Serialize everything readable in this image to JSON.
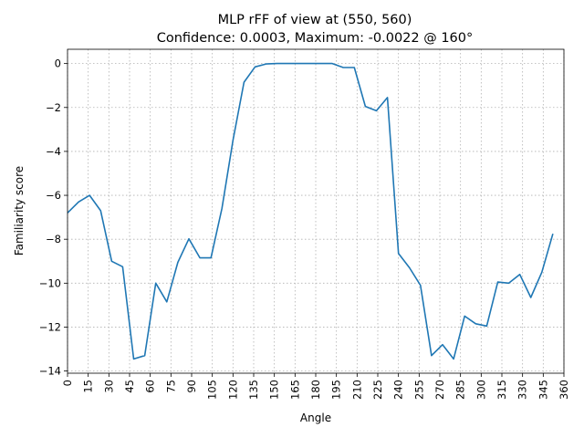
{
  "chart_data": {
    "type": "line",
    "title": "MLP rFF of view at (550, 560)",
    "subtitle": "Confidence: 0.0003, Maximum: -0.0022 @ 160°",
    "xlabel": "Angle",
    "ylabel": "Familiarity score",
    "xlim": [
      0,
      360
    ],
    "ylim": [
      -14.1,
      0.65
    ],
    "x_ticks": [
      0,
      15,
      30,
      45,
      60,
      75,
      90,
      105,
      120,
      135,
      150,
      165,
      180,
      195,
      210,
      225,
      240,
      255,
      270,
      285,
      300,
      315,
      330,
      345,
      360
    ],
    "y_ticks": [
      0,
      -2,
      -4,
      -6,
      -8,
      -10,
      -12,
      -14
    ],
    "y_tick_labels": [
      "0",
      "−2",
      "−4",
      "−6",
      "−8",
      "−10",
      "−12",
      "−14"
    ],
    "grid": true,
    "series_color": "#1f77b4",
    "x": [
      0,
      8,
      16,
      24,
      32,
      40,
      48,
      56,
      64,
      72,
      80,
      88,
      96,
      104,
      112,
      120,
      128,
      136,
      144,
      152,
      160,
      168,
      176,
      184,
      192,
      200,
      208,
      216,
      224,
      232,
      240,
      248,
      256,
      264,
      272,
      280,
      288,
      296,
      304,
      312,
      320,
      328,
      336,
      344,
      352
    ],
    "y": [
      -6.8,
      -6.3,
      -6.0,
      -6.7,
      -9.0,
      -9.25,
      -13.45,
      -13.3,
      -10.0,
      -10.85,
      -9.05,
      -7.98,
      -8.85,
      -8.85,
      -6.6,
      -3.5,
      -0.85,
      -0.15,
      -0.02,
      0.0,
      0.0,
      0.0,
      0.0,
      0.0,
      0.0,
      -0.18,
      -0.18,
      -1.95,
      -2.15,
      -1.55,
      -8.65,
      -9.3,
      -10.1,
      -13.3,
      -12.8,
      -13.45,
      -11.5,
      -11.85,
      -11.95,
      -9.95,
      -10.0,
      -9.6,
      -10.65,
      -9.5,
      -7.75
    ]
  }
}
